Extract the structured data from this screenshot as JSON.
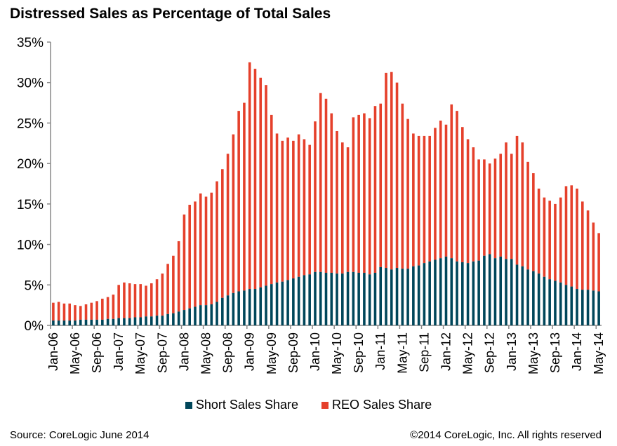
{
  "chart_data": {
    "type": "bar",
    "stacked": true,
    "title": "Distressed Sales as Percentage of Total Sales",
    "xlabel": "",
    "ylabel": "",
    "ylim": [
      0,
      35
    ],
    "yticks": [
      "0%",
      "5%",
      "10%",
      "15%",
      "20%",
      "25%",
      "30%",
      "35%"
    ],
    "xtick_labels": [
      "Jan-06",
      "May-06",
      "Sep-06",
      "Jan-07",
      "May-07",
      "Sep-07",
      "Jan-08",
      "May-08",
      "Sep-08",
      "Jan-09",
      "May-09",
      "Sep-09",
      "Jan-10",
      "May-10",
      "Sep-10",
      "Jan-11",
      "May-11",
      "Sep-11",
      "Jan-12",
      "May-12",
      "Sep-12",
      "Jan-13",
      "May-13",
      "Sep-13",
      "Jan-14",
      "May-14"
    ],
    "start": "Jan-06",
    "end": "May-14",
    "frequency": "monthly",
    "legend_position": "bottom",
    "series": [
      {
        "name": "Short Sales Share",
        "color": "#00465a",
        "values": [
          0.6,
          0.6,
          0.6,
          0.6,
          0.6,
          0.7,
          0.7,
          0.7,
          0.7,
          0.7,
          0.8,
          0.8,
          0.9,
          0.9,
          0.9,
          1.0,
          1.0,
          1.1,
          1.1,
          1.2,
          1.2,
          1.4,
          1.5,
          1.7,
          1.9,
          2.1,
          2.3,
          2.5,
          2.5,
          2.6,
          2.9,
          3.4,
          3.7,
          4.0,
          4.2,
          4.3,
          4.5,
          4.5,
          4.7,
          4.9,
          5.1,
          5.3,
          5.4,
          5.6,
          5.8,
          6.0,
          6.2,
          6.3,
          6.6,
          6.6,
          6.5,
          6.5,
          6.4,
          6.4,
          6.6,
          6.6,
          6.5,
          6.5,
          6.3,
          6.5,
          7.2,
          7.1,
          6.9,
          7.1,
          7.0,
          7.0,
          7.3,
          7.4,
          7.7,
          7.9,
          8.1,
          8.3,
          8.5,
          8.3,
          7.9,
          7.8,
          7.7,
          7.9,
          8.0,
          8.6,
          8.8,
          8.3,
          8.5,
          8.2,
          8.2,
          7.5,
          7.3,
          6.9,
          6.7,
          6.4,
          6.0,
          5.7,
          5.5,
          5.3,
          5.0,
          4.8,
          4.5,
          4.4,
          4.4,
          4.3,
          4.2
        ]
      },
      {
        "name": "REO Sales Share",
        "color": "#e5402b",
        "totals": [
          2.8,
          2.9,
          2.7,
          2.7,
          2.5,
          2.4,
          2.6,
          2.8,
          3.0,
          3.3,
          3.5,
          3.8,
          5.0,
          5.3,
          5.2,
          5.1,
          5.1,
          4.9,
          5.2,
          5.7,
          6.4,
          7.6,
          8.6,
          10.4,
          13.7,
          14.9,
          15.3,
          16.3,
          15.9,
          16.4,
          17.8,
          19.3,
          21.2,
          23.6,
          26.5,
          27.5,
          32.5,
          31.7,
          30.6,
          29.7,
          26.0,
          23.7,
          22.8,
          23.2,
          22.8,
          23.6,
          23.0,
          22.3,
          25.2,
          28.7,
          28.0,
          26.2,
          24.0,
          22.6,
          22.0,
          25.7,
          26.0,
          26.2,
          25.6,
          27.1,
          27.4,
          31.2,
          31.3,
          30.0,
          27.4,
          25.5,
          23.7,
          23.4,
          23.4,
          23.4,
          24.4,
          25.3,
          24.8,
          27.3,
          26.5,
          24.5,
          23.0,
          22.0,
          20.5,
          20.5,
          20.0,
          20.6,
          21.2,
          22.6,
          21.2,
          23.4,
          22.6,
          20.2,
          18.8,
          16.9,
          15.8,
          15.4,
          15.0,
          15.8,
          17.2,
          17.3,
          16.9,
          15.3,
          14.2,
          12.7,
          11.4
        ]
      }
    ]
  },
  "footer": {
    "source": "Source: CoreLogic June 2014",
    "copyright": "©2014 CoreLogic, Inc. All rights reserved"
  }
}
